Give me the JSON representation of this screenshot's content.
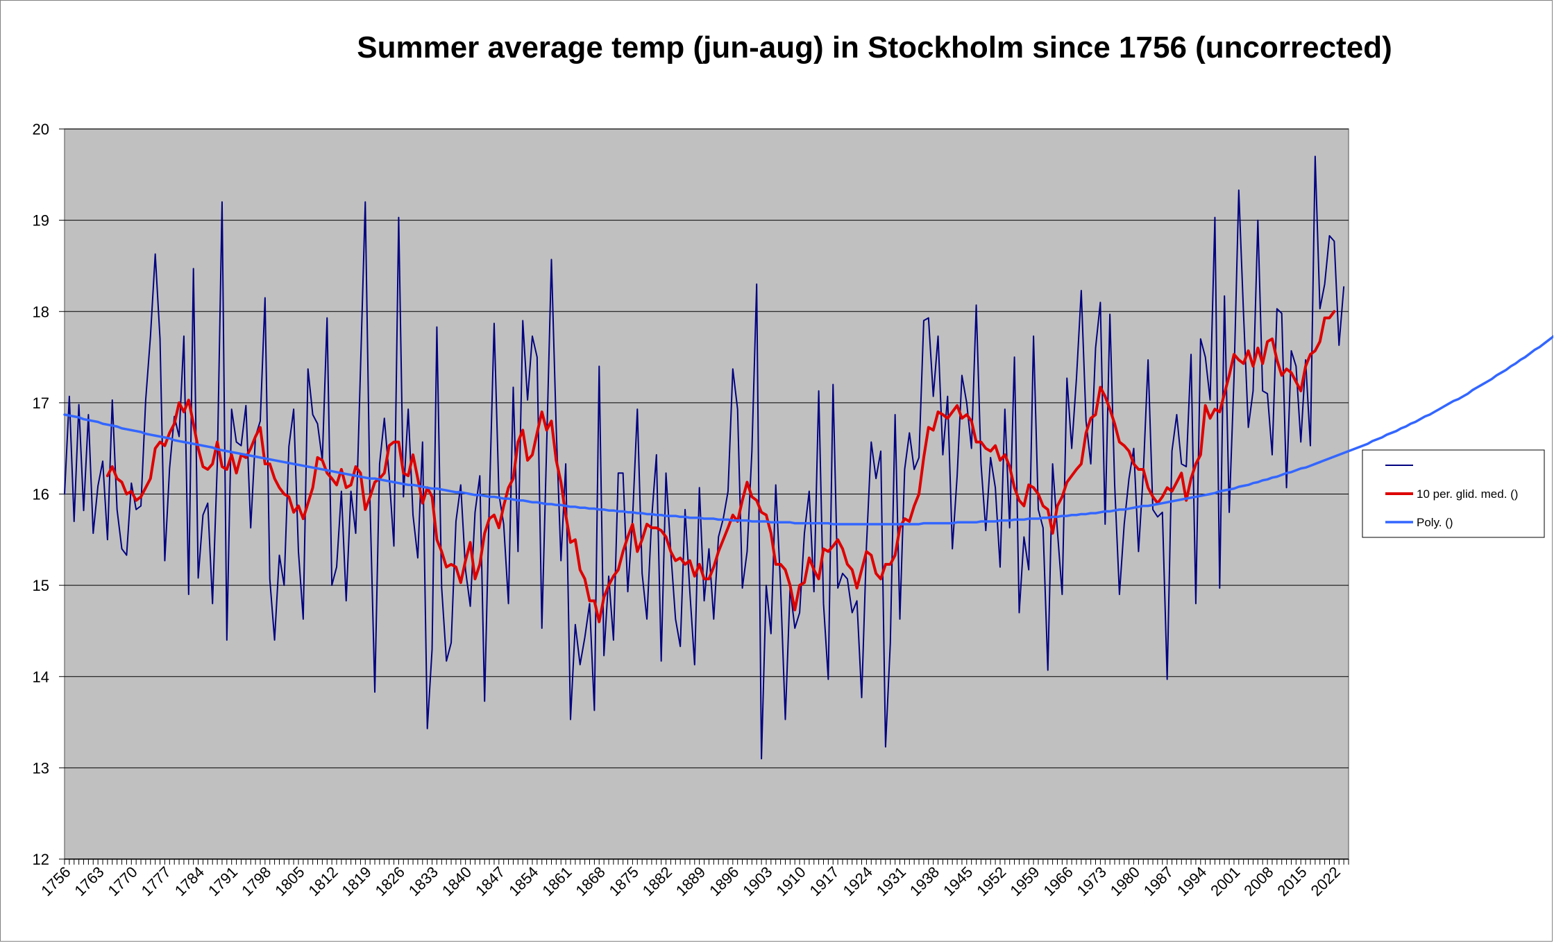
{
  "chart_data": {
    "type": "line",
    "title": "Summer average temp (jun-aug) in Stockholm since 1756 (uncorrected)",
    "xlabel": "",
    "ylabel": "",
    "xlim": [
      1756,
      2025
    ],
    "ylim": [
      12,
      20
    ],
    "y_ticks": [
      12,
      13,
      14,
      15,
      16,
      17,
      18,
      19,
      20
    ],
    "x_ticks": [
      1756,
      1763,
      1770,
      1777,
      1784,
      1791,
      1798,
      1805,
      1812,
      1819,
      1826,
      1833,
      1840,
      1847,
      1854,
      1861,
      1868,
      1875,
      1882,
      1889,
      1896,
      1903,
      1910,
      1917,
      1924,
      1931,
      1938,
      1945,
      1952,
      1959,
      1966,
      1973,
      1980,
      1987,
      1994,
      2001,
      2008,
      2015,
      2022
    ],
    "grid": "horizontal major gridlines",
    "plot_background": "#c0c0c0",
    "legend_position": "right",
    "series": [
      {
        "name": "",
        "color": "#000080",
        "x_start": 1756,
        "values": [
          16.0,
          17.07,
          15.7,
          16.98,
          15.82,
          16.87,
          15.57,
          16.09,
          16.36,
          15.5,
          17.03,
          15.83,
          15.4,
          15.33,
          16.12,
          15.83,
          15.87,
          17.03,
          17.73,
          18.63,
          17.7,
          15.27,
          16.28,
          16.85,
          16.63,
          17.73,
          14.9,
          18.47,
          15.08,
          15.77,
          15.9,
          14.8,
          16.33,
          19.2,
          14.4,
          16.93,
          16.57,
          16.53,
          16.97,
          15.63,
          16.63,
          16.8,
          18.15,
          15.07,
          14.4,
          15.33,
          15.0,
          16.52,
          16.93,
          15.37,
          14.63,
          17.37,
          16.87,
          16.77,
          16.37,
          17.93,
          15.0,
          15.2,
          16.03,
          14.83,
          16.03,
          15.57,
          17.37,
          19.2,
          15.9,
          13.83,
          16.33,
          16.83,
          16.2,
          15.43,
          19.03,
          15.97,
          16.93,
          15.77,
          15.3,
          16.57,
          13.43,
          14.3,
          17.83,
          14.98,
          14.17,
          14.37,
          15.7,
          16.1,
          15.17,
          14.77,
          15.8,
          16.2,
          13.73,
          15.93,
          17.87,
          16.0,
          15.67,
          14.8,
          17.17,
          15.37,
          17.9,
          17.03,
          17.73,
          17.5,
          14.53,
          16.53,
          18.57,
          16.73,
          15.27,
          16.33,
          13.53,
          14.57,
          14.13,
          14.43,
          14.8,
          13.63,
          17.4,
          14.23,
          15.1,
          14.4,
          16.23,
          16.23,
          14.93,
          15.73,
          16.93,
          15.13,
          14.63,
          15.73,
          16.43,
          14.17,
          16.23,
          15.37,
          14.63,
          14.33,
          15.83,
          14.93,
          14.13,
          16.07,
          14.83,
          15.4,
          14.63,
          15.53,
          15.73,
          16.03,
          17.37,
          16.93,
          14.97,
          15.37,
          16.47,
          18.3,
          13.1,
          15.0,
          14.47,
          16.1,
          15.0,
          13.53,
          14.97,
          14.53,
          14.7,
          15.57,
          16.03,
          14.93,
          17.13,
          14.8,
          13.97,
          17.2,
          14.97,
          15.13,
          15.07,
          14.7,
          14.83,
          13.77,
          15.43,
          16.57,
          16.17,
          16.47,
          13.23,
          14.37,
          16.87,
          14.63,
          16.27,
          16.67,
          16.27,
          16.4,
          17.9,
          17.93,
          17.07,
          17.73,
          16.43,
          17.07,
          15.4,
          16.2,
          17.3,
          17.0,
          16.5,
          18.07,
          16.33,
          15.6,
          16.4,
          16.07,
          15.2,
          16.93,
          15.63,
          17.5,
          14.7,
          15.53,
          15.17,
          17.73,
          15.83,
          15.63,
          14.07,
          16.33,
          15.6,
          14.9,
          17.27,
          16.5,
          17.27,
          18.23,
          16.8,
          16.33,
          17.6,
          18.1,
          15.67,
          17.97,
          16.1,
          14.9,
          15.67,
          16.17,
          16.5,
          15.37,
          16.23,
          17.47,
          15.83,
          15.75,
          15.8,
          13.97,
          16.47,
          16.87,
          16.33,
          16.3,
          17.53,
          14.8,
          17.7,
          17.5,
          17.03,
          19.03,
          14.97,
          18.17,
          15.8,
          17.27,
          19.33,
          17.97,
          16.73,
          17.13,
          19.0,
          17.13,
          17.1,
          16.43,
          18.03,
          17.98,
          16.07,
          17.57,
          17.4,
          16.57,
          17.47,
          16.53,
          19.7,
          18.03,
          18.3,
          18.83,
          18.77,
          17.63,
          18.27
        ]
      },
      {
        "name": "10 per. glid. med. ()",
        "color": "#dd0000",
        "x_start": 1765,
        "values": [
          16.2,
          16.3,
          16.17,
          16.13,
          16.0,
          16.03,
          15.93,
          15.97,
          16.07,
          16.17,
          16.5,
          16.57,
          16.53,
          16.67,
          16.77,
          17.0,
          16.9,
          17.03,
          16.77,
          16.5,
          16.3,
          16.27,
          16.33,
          16.57,
          16.3,
          16.27,
          16.43,
          16.23,
          16.43,
          16.4,
          16.5,
          16.63,
          16.73,
          16.33,
          16.33,
          16.17,
          16.07,
          16.0,
          15.97,
          15.8,
          15.87,
          15.73,
          15.9,
          16.07,
          16.4,
          16.37,
          16.23,
          16.17,
          16.1,
          16.27,
          16.07,
          16.1,
          16.3,
          16.23,
          15.83,
          15.97,
          16.13,
          16.17,
          16.23,
          16.53,
          16.57,
          16.57,
          16.23,
          16.2,
          16.43,
          16.17,
          15.9,
          16.07,
          15.97,
          15.5,
          15.37,
          15.2,
          15.23,
          15.2,
          15.03,
          15.27,
          15.47,
          15.07,
          15.23,
          15.57,
          15.73,
          15.77,
          15.63,
          15.87,
          16.07,
          16.17,
          16.57,
          16.7,
          16.37,
          16.43,
          16.67,
          16.9,
          16.7,
          16.8,
          16.37,
          16.13,
          15.77,
          15.47,
          15.5,
          15.17,
          15.07,
          14.83,
          14.83,
          14.6,
          14.87,
          15.0,
          15.1,
          15.17,
          15.37,
          15.53,
          15.67,
          15.37,
          15.5,
          15.67,
          15.63,
          15.63,
          15.6,
          15.53,
          15.37,
          15.27,
          15.3,
          15.23,
          15.27,
          15.1,
          15.23,
          15.07,
          15.07,
          15.2,
          15.37,
          15.5,
          15.63,
          15.77,
          15.7,
          15.93,
          16.13,
          15.97,
          15.93,
          15.8,
          15.77,
          15.57,
          15.23,
          15.23,
          15.17,
          15.0,
          14.73,
          15.0,
          15.03,
          15.3,
          15.17,
          15.07,
          15.4,
          15.37,
          15.43,
          15.5,
          15.4,
          15.23,
          15.17,
          14.97,
          15.17,
          15.37,
          15.33,
          15.13,
          15.07,
          15.23,
          15.23,
          15.33,
          15.63,
          15.73,
          15.7,
          15.87,
          16.0,
          16.4,
          16.73,
          16.7,
          16.9,
          16.87,
          16.83,
          16.9,
          16.97,
          16.83,
          16.87,
          16.8,
          16.57,
          16.57,
          16.5,
          16.47,
          16.53,
          16.37,
          16.43,
          16.3,
          16.07,
          15.93,
          15.87,
          16.1,
          16.07,
          16.0,
          15.87,
          15.83,
          15.57,
          15.87,
          15.97,
          16.13,
          16.2,
          16.27,
          16.33,
          16.67,
          16.83,
          16.87,
          17.17,
          17.07,
          16.93,
          16.77,
          16.57,
          16.53,
          16.47,
          16.33,
          16.27,
          16.27,
          16.07,
          15.97,
          15.9,
          15.97,
          16.07,
          16.03,
          16.13,
          16.23,
          15.93,
          16.17,
          16.33,
          16.43,
          16.97,
          16.83,
          16.93,
          16.9,
          17.1,
          17.3,
          17.53,
          17.47,
          17.43,
          17.57,
          17.4,
          17.6,
          17.43,
          17.67,
          17.7,
          17.47,
          17.3,
          17.37,
          17.33,
          17.23,
          17.13,
          17.4,
          17.53,
          17.57,
          17.67,
          17.93,
          17.93,
          18.0
        ]
      },
      {
        "name": "Poly. ()",
        "color": "#3366ff",
        "x_start": 1756,
        "values": [
          16.87,
          16.86,
          16.85,
          16.84,
          16.82,
          16.81,
          16.8,
          16.79,
          16.77,
          16.76,
          16.75,
          16.74,
          16.72,
          16.71,
          16.7,
          16.69,
          16.68,
          16.66,
          16.65,
          16.64,
          16.63,
          16.62,
          16.61,
          16.59,
          16.58,
          16.57,
          16.56,
          16.55,
          16.54,
          16.53,
          16.52,
          16.51,
          16.49,
          16.48,
          16.47,
          16.46,
          16.45,
          16.44,
          16.43,
          16.42,
          16.41,
          16.4,
          16.39,
          16.38,
          16.37,
          16.36,
          16.35,
          16.34,
          16.33,
          16.32,
          16.31,
          16.3,
          16.29,
          16.28,
          16.27,
          16.26,
          16.25,
          16.24,
          16.23,
          16.22,
          16.21,
          16.2,
          16.19,
          16.18,
          16.17,
          16.17,
          16.16,
          16.15,
          16.14,
          16.13,
          16.12,
          16.11,
          16.1,
          16.1,
          16.09,
          16.08,
          16.07,
          16.06,
          16.06,
          16.05,
          16.04,
          16.03,
          16.02,
          16.02,
          16.01,
          16.0,
          15.99,
          15.99,
          15.98,
          15.97,
          15.97,
          15.96,
          15.95,
          15.95,
          15.94,
          15.93,
          15.93,
          15.92,
          15.91,
          15.91,
          15.9,
          15.89,
          15.89,
          15.88,
          15.88,
          15.87,
          15.86,
          15.86,
          15.85,
          15.85,
          15.84,
          15.84,
          15.83,
          15.83,
          15.82,
          15.82,
          15.81,
          15.81,
          15.8,
          15.8,
          15.79,
          15.79,
          15.78,
          15.78,
          15.77,
          15.77,
          15.76,
          15.76,
          15.76,
          15.75,
          15.75,
          15.74,
          15.74,
          15.74,
          15.73,
          15.73,
          15.73,
          15.72,
          15.72,
          15.72,
          15.71,
          15.71,
          15.71,
          15.71,
          15.7,
          15.7,
          15.7,
          15.7,
          15.69,
          15.69,
          15.69,
          15.69,
          15.69,
          15.68,
          15.68,
          15.68,
          15.68,
          15.68,
          15.68,
          15.68,
          15.68,
          15.67,
          15.67,
          15.67,
          15.67,
          15.67,
          15.67,
          15.67,
          15.67,
          15.67,
          15.67,
          15.67,
          15.67,
          15.67,
          15.67,
          15.67,
          15.67,
          15.67,
          15.67,
          15.67,
          15.68,
          15.68,
          15.68,
          15.68,
          15.68,
          15.68,
          15.68,
          15.69,
          15.69,
          15.69,
          15.69,
          15.69,
          15.7,
          15.7,
          15.7,
          15.7,
          15.71,
          15.71,
          15.71,
          15.72,
          15.72,
          15.72,
          15.73,
          15.73,
          15.73,
          15.74,
          15.74,
          15.75,
          15.75,
          15.76,
          15.76,
          15.77,
          15.77,
          15.78,
          15.78,
          15.79,
          15.79,
          15.8,
          15.81,
          15.81,
          15.82,
          15.83,
          15.83,
          15.84,
          15.85,
          15.86,
          15.87,
          15.87,
          15.88,
          15.89,
          15.9,
          15.91,
          15.92,
          15.93,
          15.94,
          15.95,
          15.96,
          15.97,
          15.98,
          15.99,
          16.0,
          16.01,
          16.03,
          16.04,
          16.05,
          16.06,
          16.08,
          16.09,
          16.1,
          16.12,
          16.13,
          16.15,
          16.16,
          16.18,
          16.19,
          16.21,
          16.23,
          16.24,
          16.26,
          16.28,
          16.29,
          16.31,
          16.33,
          16.35,
          16.37,
          16.39,
          16.41,
          16.43,
          16.45,
          16.47,
          16.49,
          16.51,
          16.53,
          16.55,
          16.58,
          16.6,
          16.62,
          16.65,
          16.67,
          16.69,
          16.72,
          16.74,
          16.77,
          16.79,
          16.82,
          16.85,
          16.87,
          16.9,
          16.93,
          16.96,
          16.99,
          17.02,
          17.04,
          17.07,
          17.1,
          17.14,
          17.17,
          17.2,
          17.23,
          17.26,
          17.3,
          17.33,
          17.36,
          17.4,
          17.43,
          17.47,
          17.5,
          17.54,
          17.58,
          17.61,
          17.65,
          17.69,
          17.73,
          17.77
        ]
      }
    ]
  }
}
